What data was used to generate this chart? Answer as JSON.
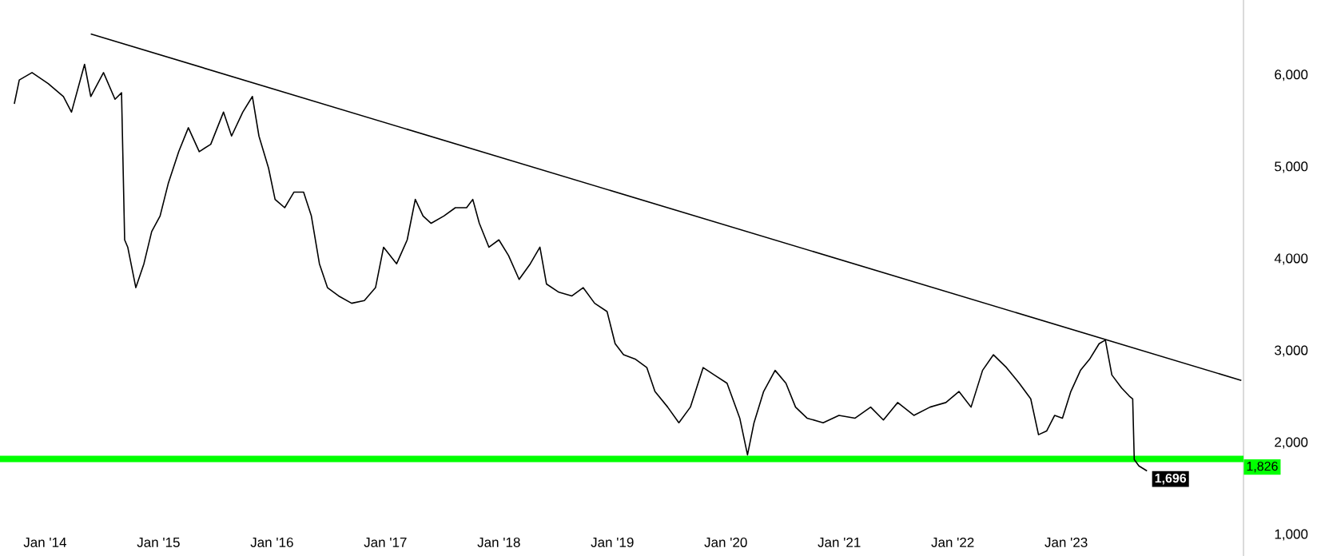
{
  "chart_data": {
    "type": "line",
    "series": [
      {
        "color": "#000000",
        "x": [
          "2013-09-24",
          "2013-10-10",
          "2013-11-20",
          "2014-01-11",
          "2014-03-01",
          "2014-03-27",
          "2014-05-08",
          "2014-05-28",
          "2014-07-08",
          "2014-08-14",
          "2014-09-04",
          "2014-09-14",
          "2014-09-24",
          "2014-10-20",
          "2014-11-15",
          "2014-12-10",
          "2015-01-06",
          "2015-02-01",
          "2015-03-07",
          "2015-04-07",
          "2015-05-12",
          "2015-06-18",
          "2015-07-29",
          "2015-08-24",
          "2015-09-29",
          "2015-10-30",
          "2015-11-20",
          "2015-12-21",
          "2016-01-11",
          "2016-02-11",
          "2016-03-12",
          "2016-04-12",
          "2016-05-07",
          "2016-06-02",
          "2016-06-28",
          "2016-08-03",
          "2016-09-14",
          "2016-10-25",
          "2016-11-30",
          "2016-12-26",
          "2017-02-06",
          "2017-03-12",
          "2017-04-07",
          "2017-05-02",
          "2017-05-28",
          "2017-07-08",
          "2017-08-14",
          "2017-09-19",
          "2017-10-09",
          "2017-10-30",
          "2017-11-30",
          "2018-01-01",
          "2018-02-01",
          "2018-03-07",
          "2018-04-12",
          "2018-05-13",
          "2018-06-03",
          "2018-07-13",
          "2018-08-24",
          "2018-09-29",
          "2018-11-05",
          "2018-12-15",
          "2019-01-10",
          "2019-02-06",
          "2019-03-17",
          "2019-04-22",
          "2019-05-18",
          "2019-06-28",
          "2019-08-03",
          "2019-09-09",
          "2019-10-20",
          "2019-11-25",
          "2020-01-05",
          "2020-02-15",
          "2020-03-11",
          "2020-04-01",
          "2020-05-02",
          "2020-06-08",
          "2020-07-13",
          "2020-08-13",
          "2020-09-19",
          "2020-11-10",
          "2020-12-31",
          "2021-02-21",
          "2021-04-12",
          "2021-05-23",
          "2021-07-08",
          "2021-08-29",
          "2021-10-20",
          "2021-12-10",
          "2022-01-21",
          "2022-03-01",
          "2022-04-07",
          "2022-05-12",
          "2022-06-23",
          "2022-08-03",
          "2022-09-09",
          "2022-10-04",
          "2022-10-30",
          "2022-11-25",
          "2022-12-20",
          "2023-01-16",
          "2023-02-16",
          "2023-03-17",
          "2023-04-17",
          "2023-05-07",
          "2023-05-28",
          "2023-06-28",
          "2023-07-23",
          "2023-08-03",
          "2023-08-08",
          "2023-08-23",
          "2023-09-18"
        ],
        "values": [
          5690,
          5950,
          6030,
          5910,
          5770,
          5600,
          6120,
          5770,
          6030,
          5740,
          5810,
          4210,
          4130,
          3690,
          3950,
          4300,
          4470,
          4820,
          5170,
          5430,
          5170,
          5250,
          5600,
          5340,
          5600,
          5770,
          5340,
          4990,
          4650,
          4560,
          4730,
          4730,
          4470,
          3950,
          3690,
          3600,
          3520,
          3550,
          3690,
          4130,
          3950,
          4210,
          4650,
          4470,
          4390,
          4470,
          4560,
          4560,
          4650,
          4390,
          4130,
          4210,
          4040,
          3780,
          3950,
          4130,
          3730,
          3640,
          3600,
          3690,
          3520,
          3430,
          3080,
          2960,
          2910,
          2820,
          2560,
          2390,
          2220,
          2390,
          2820,
          2740,
          2650,
          2270,
          1870,
          2220,
          2560,
          2790,
          2650,
          2390,
          2270,
          2220,
          2300,
          2270,
          2390,
          2250,
          2440,
          2300,
          2390,
          2440,
          2560,
          2390,
          2790,
          2960,
          2820,
          2650,
          2480,
          2090,
          2130,
          2300,
          2270,
          2560,
          2790,
          2910,
          3080,
          3120,
          2740,
          2600,
          2510,
          2480,
          1820,
          1750,
          1696
        ]
      },
      {
        "type": "line",
        "color": "#000000",
        "x": [
          "2014-05-28",
          "2024-07-18"
        ],
        "values": [
          6450,
          2680
        ]
      }
    ],
    "xlim": [
      "2013-08-09",
      "2024-07-25"
    ],
    "ylim": [
      770,
      6820
    ],
    "xticks": [
      {
        "value": "2014-01-01",
        "label": "Jan '14"
      },
      {
        "value": "2015-01-01",
        "label": "Jan '15"
      },
      {
        "value": "2016-01-01",
        "label": "Jan '16"
      },
      {
        "value": "2017-01-01",
        "label": "Jan '17"
      },
      {
        "value": "2018-01-01",
        "label": "Jan '18"
      },
      {
        "value": "2019-01-01",
        "label": "Jan '19"
      },
      {
        "value": "2020-01-01",
        "label": "Jan '20"
      },
      {
        "value": "2021-01-01",
        "label": "Jan '21"
      },
      {
        "value": "2022-01-01",
        "label": "Jan '22"
      },
      {
        "value": "2023-01-01",
        "label": "Jan '23"
      }
    ],
    "yticks": [
      {
        "value": 1000,
        "label": "1,000"
      },
      {
        "value": 2000,
        "label": "2,000"
      },
      {
        "value": 3000,
        "label": "3,000"
      },
      {
        "value": 4000,
        "label": "4,000"
      },
      {
        "value": 5000,
        "label": "5,000"
      },
      {
        "value": 6000,
        "label": "6,000"
      }
    ],
    "ref_lines": [
      {
        "axis": "y",
        "value": 1826,
        "label": "1,826",
        "color": "#00ff00"
      }
    ],
    "annotations": [
      {
        "text": "1,696",
        "x": "2023-09-18",
        "y": 1696
      }
    ]
  }
}
